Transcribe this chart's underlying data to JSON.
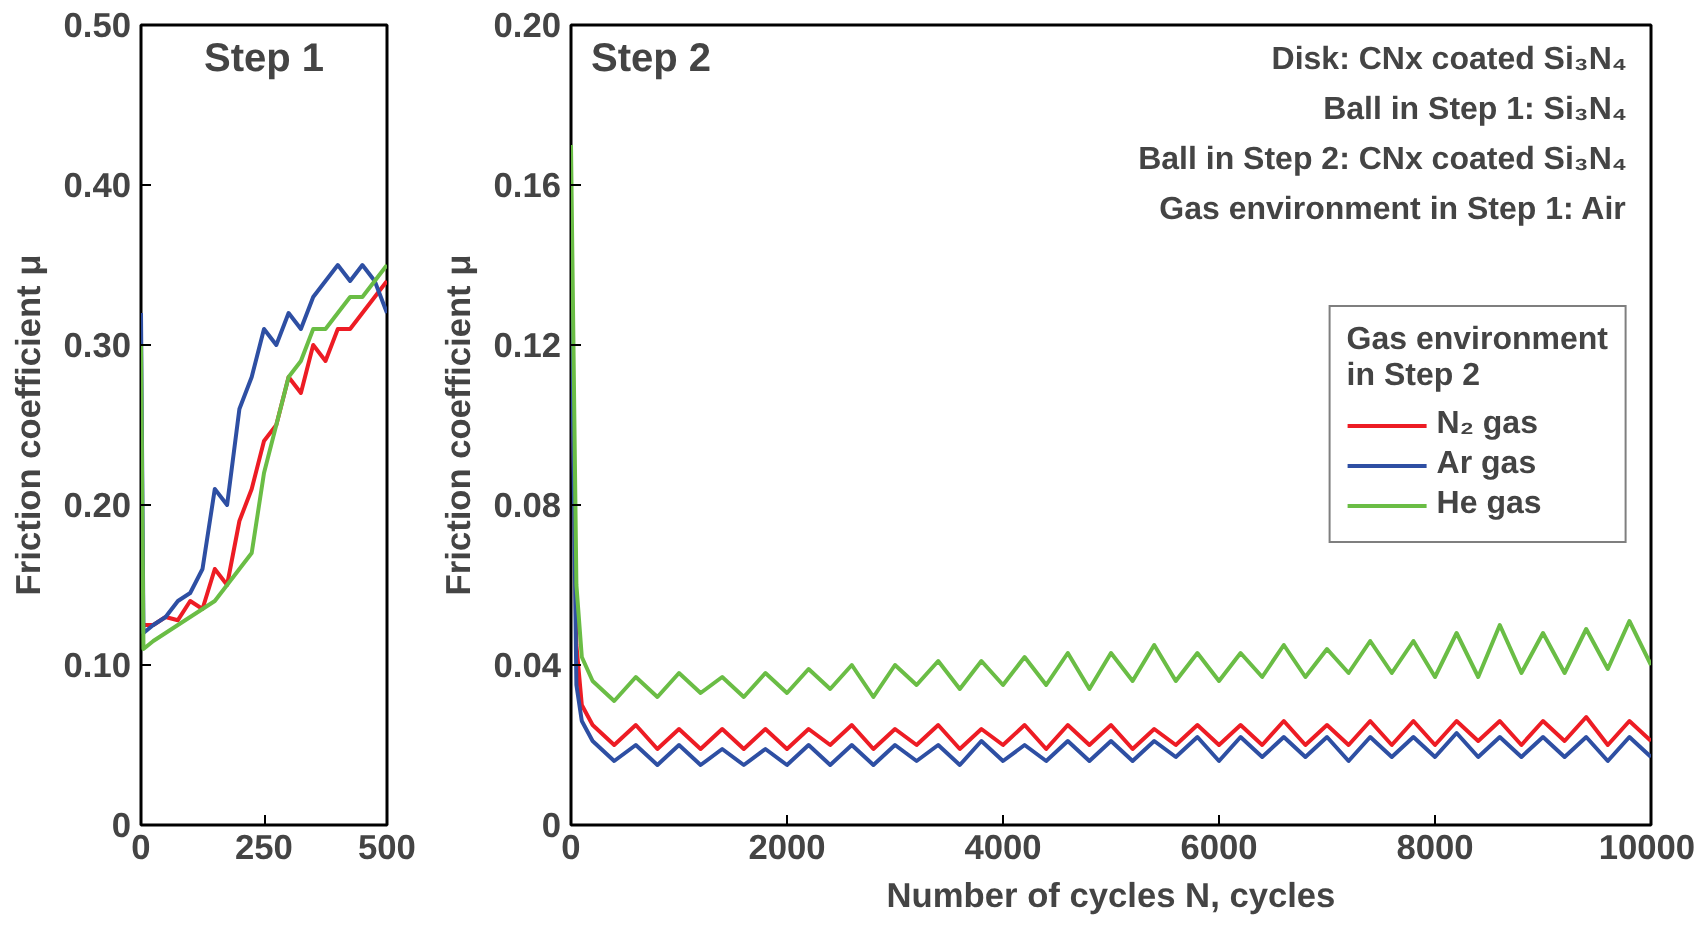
{
  "chart_data": [
    {
      "type": "line",
      "title": "Step 1",
      "ylabel": "Friction coefficient μ",
      "xlim": [
        0,
        500
      ],
      "xticks": [
        0,
        250,
        500
      ],
      "ylim": [
        0,
        0.5
      ],
      "yticks": [
        0,
        {
          "value": 0.1,
          "label": "0.10"
        },
        {
          "value": 0.2,
          "label": "0.20"
        },
        {
          "value": 0.3,
          "label": "0.30"
        },
        {
          "value": 0.4,
          "label": "0.40"
        },
        {
          "value": 0.5,
          "label": "0.50"
        }
      ],
      "grid": false,
      "legend": false,
      "x": [
        0,
        5,
        25,
        50,
        75,
        100,
        125,
        150,
        175,
        200,
        225,
        250,
        275,
        300,
        325,
        350,
        375,
        400,
        425,
        450,
        475,
        500
      ],
      "series": [
        {
          "color": "#ed1c24",
          "values": [
            null,
            0.125,
            0.125,
            0.13,
            0.128,
            0.14,
            0.135,
            0.16,
            0.15,
            0.19,
            0.21,
            0.24,
            0.25,
            0.28,
            0.27,
            0.3,
            0.29,
            0.31,
            0.31,
            0.32,
            0.33,
            0.34
          ]
        },
        {
          "color": "#2e4fa3",
          "values": [
            0.32,
            0.12,
            0.125,
            0.13,
            0.14,
            0.145,
            0.16,
            0.21,
            0.2,
            0.26,
            0.28,
            0.31,
            0.3,
            0.32,
            0.31,
            0.33,
            0.34,
            0.35,
            0.34,
            0.35,
            0.34,
            0.32
          ]
        },
        {
          "color": "#6abd45",
          "values": [
            0.3,
            0.11,
            0.115,
            0.12,
            0.125,
            0.13,
            0.135,
            0.14,
            0.15,
            0.16,
            0.17,
            0.22,
            0.25,
            0.28,
            0.29,
            0.31,
            0.31,
            0.32,
            0.33,
            0.33,
            0.34,
            0.35
          ]
        }
      ]
    },
    {
      "type": "line",
      "title": "Step 2",
      "xlabel": "Number of cycles N, cycles",
      "ylabel": "Friction coefficient μ",
      "legend_title": "Gas environment\nin Step 2",
      "annotations": [
        "Disk: CNx coated Si₃N₄",
        "Ball in Step 1: Si₃N₄",
        "Ball in Step 2: CNx coated Si₃N₄",
        "Gas environment in Step 1: Air"
      ],
      "xlim": [
        0,
        10000
      ],
      "xticks": [
        0,
        2000,
        4000,
        6000,
        8000,
        10000
      ],
      "ylim": [
        0,
        0.2
      ],
      "yticks": [
        0,
        0.04,
        0.08,
        0.12,
        0.16,
        {
          "value": 0.2,
          "label": "0.20"
        }
      ],
      "grid": false,
      "legend": "right",
      "x": [
        0,
        50,
        100,
        200,
        400,
        600,
        800,
        1000,
        1200,
        1400,
        1600,
        1800,
        2000,
        2200,
        2400,
        2600,
        2800,
        3000,
        3200,
        3400,
        3600,
        3800,
        4000,
        4200,
        4400,
        4600,
        4800,
        5000,
        5200,
        5400,
        5600,
        5800,
        6000,
        6200,
        6400,
        6600,
        6800,
        7000,
        7200,
        7400,
        7600,
        7800,
        8000,
        8200,
        8400,
        8600,
        8800,
        9000,
        9200,
        9400,
        9600,
        9800,
        10000
      ],
      "series": [
        {
          "name": "N₂ gas",
          "color": "#ed1c24",
          "values": [
            0.14,
            0.045,
            0.03,
            0.025,
            0.02,
            0.025,
            0.019,
            0.024,
            0.019,
            0.024,
            0.019,
            0.024,
            0.019,
            0.024,
            0.02,
            0.025,
            0.019,
            0.024,
            0.02,
            0.025,
            0.019,
            0.024,
            0.02,
            0.025,
            0.019,
            0.025,
            0.02,
            0.025,
            0.019,
            0.024,
            0.02,
            0.025,
            0.02,
            0.025,
            0.02,
            0.026,
            0.02,
            0.025,
            0.02,
            0.026,
            0.02,
            0.026,
            0.02,
            0.026,
            0.021,
            0.026,
            0.02,
            0.026,
            0.021,
            0.027,
            0.02,
            0.026,
            0.021
          ]
        },
        {
          "name": "Ar gas",
          "color": "#2e4fa3",
          "values": [
            0.14,
            0.035,
            0.026,
            0.021,
            0.016,
            0.02,
            0.015,
            0.02,
            0.015,
            0.019,
            0.015,
            0.019,
            0.015,
            0.02,
            0.015,
            0.02,
            0.015,
            0.02,
            0.016,
            0.02,
            0.015,
            0.021,
            0.016,
            0.02,
            0.016,
            0.021,
            0.016,
            0.021,
            0.016,
            0.021,
            0.017,
            0.022,
            0.016,
            0.022,
            0.017,
            0.022,
            0.017,
            0.022,
            0.016,
            0.022,
            0.017,
            0.022,
            0.017,
            0.023,
            0.017,
            0.022,
            0.017,
            0.022,
            0.017,
            0.022,
            0.016,
            0.022,
            0.017
          ]
        },
        {
          "name": "He gas",
          "color": "#6abd45",
          "values": [
            0.17,
            0.06,
            0.042,
            0.036,
            0.031,
            0.037,
            0.032,
            0.038,
            0.033,
            0.037,
            0.032,
            0.038,
            0.033,
            0.039,
            0.034,
            0.04,
            0.032,
            0.04,
            0.035,
            0.041,
            0.034,
            0.041,
            0.035,
            0.042,
            0.035,
            0.043,
            0.034,
            0.043,
            0.036,
            0.045,
            0.036,
            0.043,
            0.036,
            0.043,
            0.037,
            0.045,
            0.037,
            0.044,
            0.038,
            0.046,
            0.038,
            0.046,
            0.037,
            0.048,
            0.037,
            0.05,
            0.038,
            0.048,
            0.038,
            0.049,
            0.039,
            0.051,
            0.04
          ]
        }
      ]
    }
  ]
}
